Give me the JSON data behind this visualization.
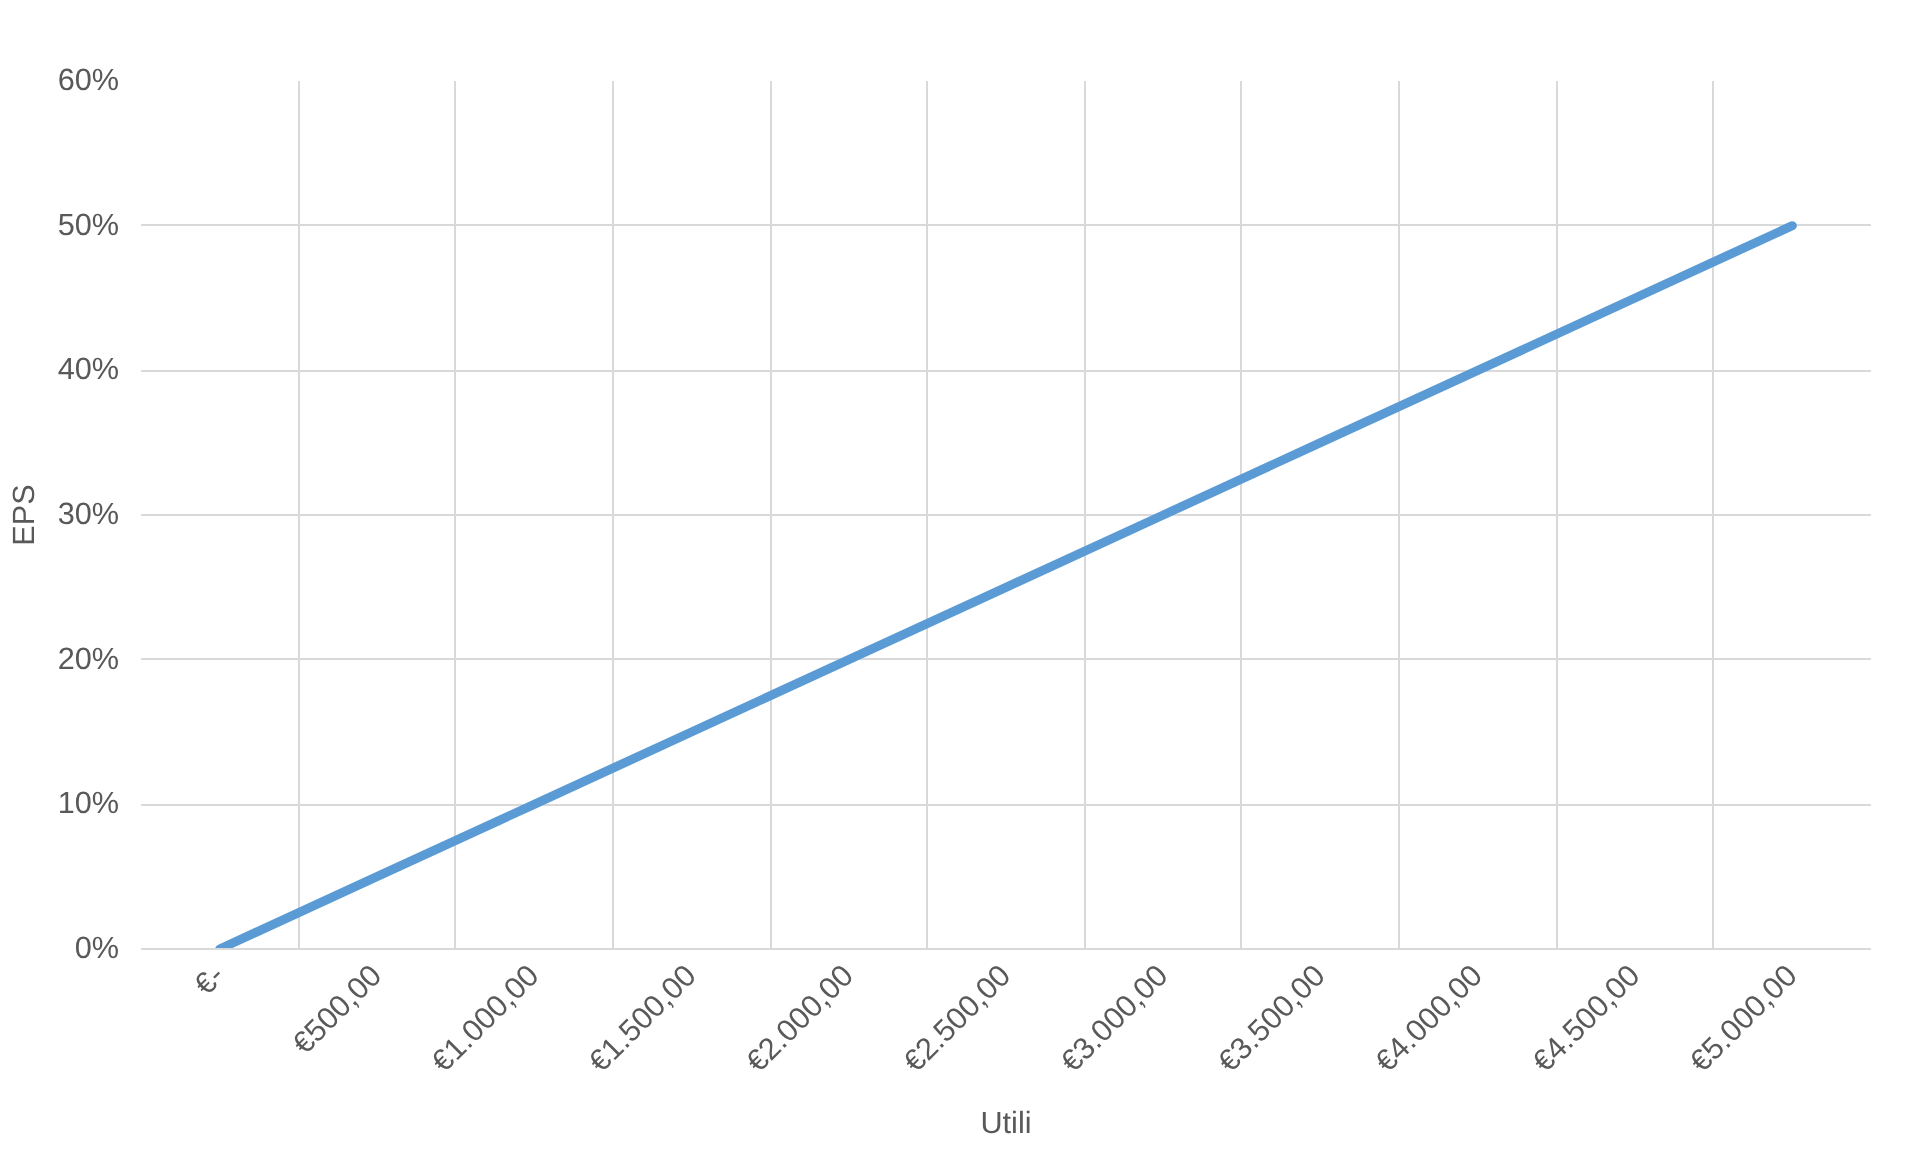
{
  "chart_data": {
    "type": "line",
    "xlabel": "Utili",
    "ylabel": "EPS",
    "categories": [
      "€-",
      "€500,00",
      "€1.000,00",
      "€1.500,00",
      "€2.000,00",
      "€2.500,00",
      "€3.000,00",
      "€3.500,00",
      "€4.000,00",
      "€4.500,00",
      "€5.000,00"
    ],
    "series": [
      {
        "color": "#5b9bd5",
        "values": [
          0,
          5,
          10,
          15,
          20,
          25,
          30,
          35,
          40,
          45,
          50
        ]
      }
    ],
    "ylim": [
      0,
      60
    ],
    "yticks": [
      {
        "value": 0,
        "label": "0%"
      },
      {
        "value": 10,
        "label": "10%"
      },
      {
        "value": 20,
        "label": "20%"
      },
      {
        "value": 30,
        "label": "30%"
      },
      {
        "value": 40,
        "label": "40%"
      },
      {
        "value": 50,
        "label": "50%"
      },
      {
        "value": 60,
        "label": "60%"
      }
    ],
    "grid": true,
    "line_style": "solid"
  }
}
